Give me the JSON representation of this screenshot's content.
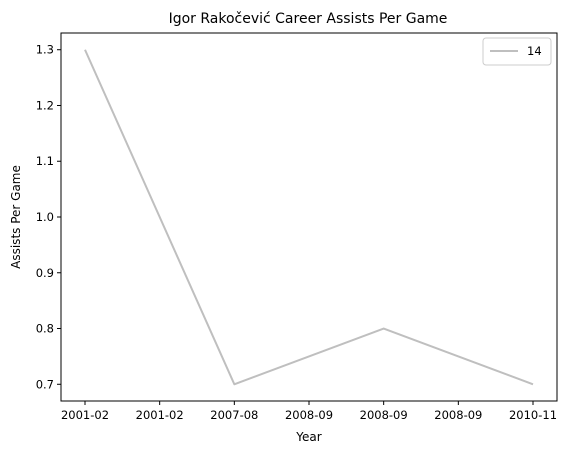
{
  "chart_data": {
    "type": "line",
    "title": "Igor Rakočević Career Assists Per Game",
    "xlabel": "Year",
    "ylabel": "Assists Per Game",
    "x_ticks": [
      "2001-02",
      "2001-02",
      "2007-08",
      "2008-09",
      "2008-09",
      "2008-09",
      "2010-11"
    ],
    "y_ticks": [
      "0.7",
      "0.8",
      "0.9",
      "1.0",
      "1.1",
      "1.2",
      "1.3"
    ],
    "ylim": [
      0.67,
      1.33
    ],
    "grid": false,
    "legend_position": "top-right",
    "series": [
      {
        "name": "14",
        "color": "#bfbfbf",
        "points": [
          {
            "x": 0,
            "y": 1.3
          },
          {
            "x": 2,
            "y": 0.7
          },
          {
            "x": 4,
            "y": 0.8
          },
          {
            "x": 6,
            "y": 0.7
          }
        ]
      }
    ]
  }
}
